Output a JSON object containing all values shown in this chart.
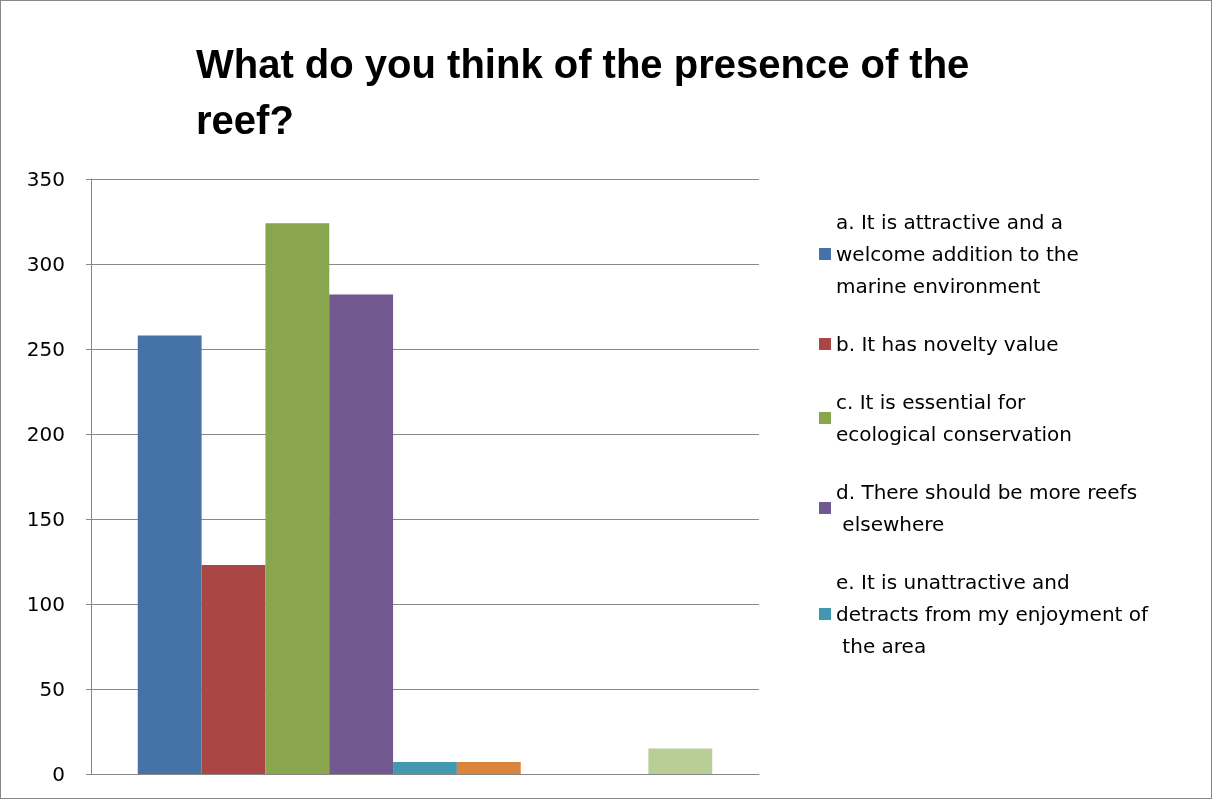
{
  "chart_data": {
    "type": "bar",
    "title": "What do you think of the presence of the reef?",
    "categories": [
      null
    ],
    "series": [
      {
        "name": "a. It is attractive and a welcome addition to the marine environment",
        "color": "#4572a7",
        "values": [
          258
        ]
      },
      {
        "name": "b. It has novelty value",
        "color": "#aa4643",
        "values": [
          123
        ]
      },
      {
        "name": "c. It is essential for ecological conservation",
        "color": "#89a54e",
        "values": [
          324
        ]
      },
      {
        "name": "d. There should be more reefs elsewhere",
        "color": "#71588f",
        "values": [
          282
        ]
      },
      {
        "name": "e. It is unattractive and detracts from my enjoyment of the area",
        "color": "#4198af",
        "values": [
          7
        ]
      },
      {
        "color": "#db843d",
        "values": [
          7
        ]
      },
      {
        "values": [
          null
        ]
      },
      {
        "values": [
          null
        ]
      },
      {
        "color": "#b9cd96",
        "values": [
          15
        ]
      }
    ],
    "ylim": [
      0,
      350
    ],
    "yticks": [
      0,
      50,
      100,
      150,
      200,
      250,
      300,
      350
    ],
    "grid": true,
    "legend": "right"
  }
}
